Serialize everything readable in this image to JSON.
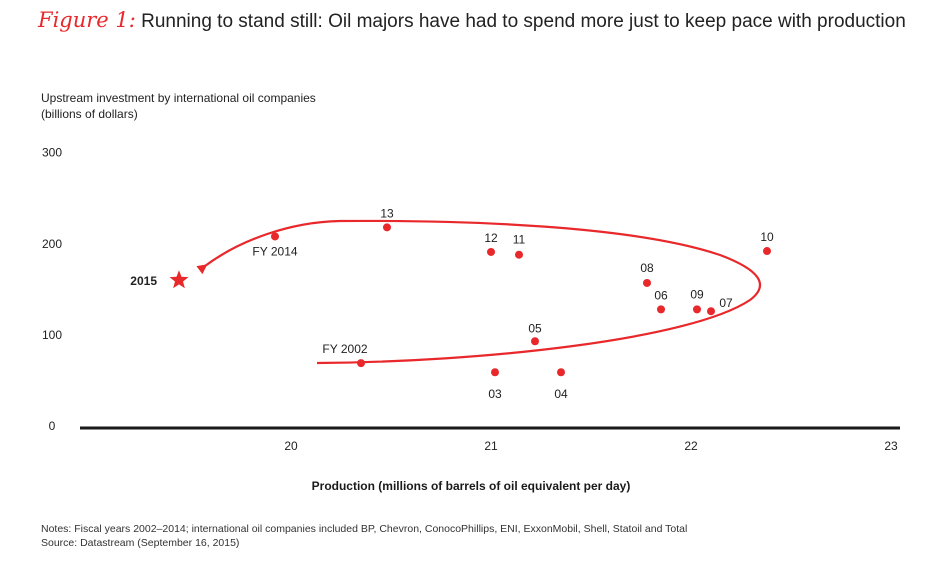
{
  "figure": {
    "label": "Figure 1:",
    "title": "Running to stand still: Oil majors have had to spend more just to keep pace with production"
  },
  "chart_data": {
    "type": "scatter",
    "title": "Running to stand still: Oil majors have had to spend more just to keep pace with production",
    "ylabel_line1": "Upstream investment by international oil companies",
    "ylabel_line2": "(billions of dollars)",
    "xlabel": "Production (millions of barrels of oil equivalent per day)",
    "xlim": [
      19,
      23
    ],
    "ylim": [
      0,
      300
    ],
    "x_ticks": [
      "20",
      "21",
      "22",
      "23"
    ],
    "x_tick_values": [
      20,
      21,
      22,
      23
    ],
    "y_ticks": [
      "0",
      "100",
      "200",
      "300"
    ],
    "y_tick_values": [
      0,
      100,
      200,
      300
    ],
    "grid": false,
    "points": [
      {
        "label": "FY 2002",
        "x": 20.35,
        "y": 69
      },
      {
        "label": "03",
        "x": 21.02,
        "y": 59
      },
      {
        "label": "04",
        "x": 21.35,
        "y": 59
      },
      {
        "label": "05",
        "x": 21.22,
        "y": 93
      },
      {
        "label": "06",
        "x": 21.85,
        "y": 128
      },
      {
        "label": "07",
        "x": 22.1,
        "y": 126
      },
      {
        "label": "08",
        "x": 21.78,
        "y": 157
      },
      {
        "label": "09",
        "x": 22.03,
        "y": 128
      },
      {
        "label": "10",
        "x": 22.38,
        "y": 192
      },
      {
        "label": "11",
        "x": 21.14,
        "y": 188
      },
      {
        "label": "12",
        "x": 21.0,
        "y": 191
      },
      {
        "label": "13",
        "x": 20.48,
        "y": 218
      },
      {
        "label": "FY 2014",
        "x": 19.92,
        "y": 208
      }
    ],
    "projection": {
      "label": "2015",
      "x": 19.44,
      "y": 160
    },
    "colors": {
      "points": "#e8282b",
      "arrow": "#e8282b",
      "axis": "#1a1a1a"
    }
  },
  "notes": {
    "line1": "Notes: Fiscal years 2002–2014; international oil companies included BP, Chevron, ConocoPhillips, ENI, ExxonMobil, Shell, Statoil and Total",
    "line2": "Source: Datastream (September 16, 2015)"
  }
}
